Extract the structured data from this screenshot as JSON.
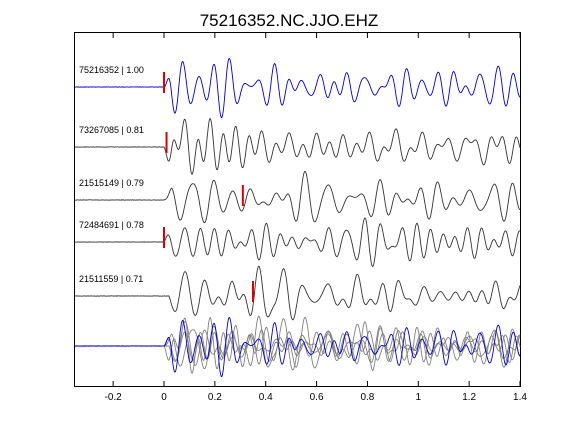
{
  "chart_data": {
    "type": "line",
    "title": "75216352.NC.JJO.EHZ",
    "xlabel": "",
    "ylabel": "",
    "xlim": [
      -0.35,
      1.4
    ],
    "x_ticks": [
      -0.2,
      0,
      0.2,
      0.4,
      0.6,
      0.8,
      1,
      1.2,
      1.4
    ],
    "x_tick_labels": [
      "-0.2",
      "0",
      "0.2",
      "0.4",
      "0.6",
      "0.8",
      "1",
      "1.2",
      "1.4"
    ],
    "grid": false,
    "colors": {
      "reference": "#0000cc",
      "trace": "#333333",
      "stack": "#808080",
      "pick": "#dd0000"
    },
    "traces": [
      {
        "label": "75216352 | 1.00",
        "event_id": "75216352",
        "correlation": 1.0,
        "pick_time": 0.0,
        "color": "#0000cc",
        "onset_time": 0.0,
        "duration": 1.4,
        "amplitude": 1.0
      },
      {
        "label": "73267085 | 0.81",
        "event_id": "73267085",
        "correlation": 0.81,
        "pick_time": 0.01,
        "color": "#333333",
        "onset_time": 0.0,
        "duration": 1.4,
        "amplitude": 1.0
      },
      {
        "label": "21515149 | 0.79",
        "event_id": "21515149",
        "correlation": 0.79,
        "pick_time": 0.31,
        "color": "#333333",
        "onset_time": 0.0,
        "duration": 1.4,
        "amplitude": 1.0
      },
      {
        "label": "72484691 | 0.78",
        "event_id": "72484691",
        "correlation": 0.78,
        "pick_time": 0.0,
        "color": "#333333",
        "onset_time": 0.0,
        "duration": 1.4,
        "amplitude": 1.0
      },
      {
        "label": "21511559 | 0.71",
        "event_id": "21511559",
        "correlation": 0.71,
        "pick_time": 0.35,
        "color": "#333333",
        "onset_time": 0.02,
        "duration": 1.4,
        "amplitude": 1.0
      }
    ],
    "stack": {
      "count": 5,
      "reference_index": 0,
      "onset_time": 0.0
    }
  }
}
